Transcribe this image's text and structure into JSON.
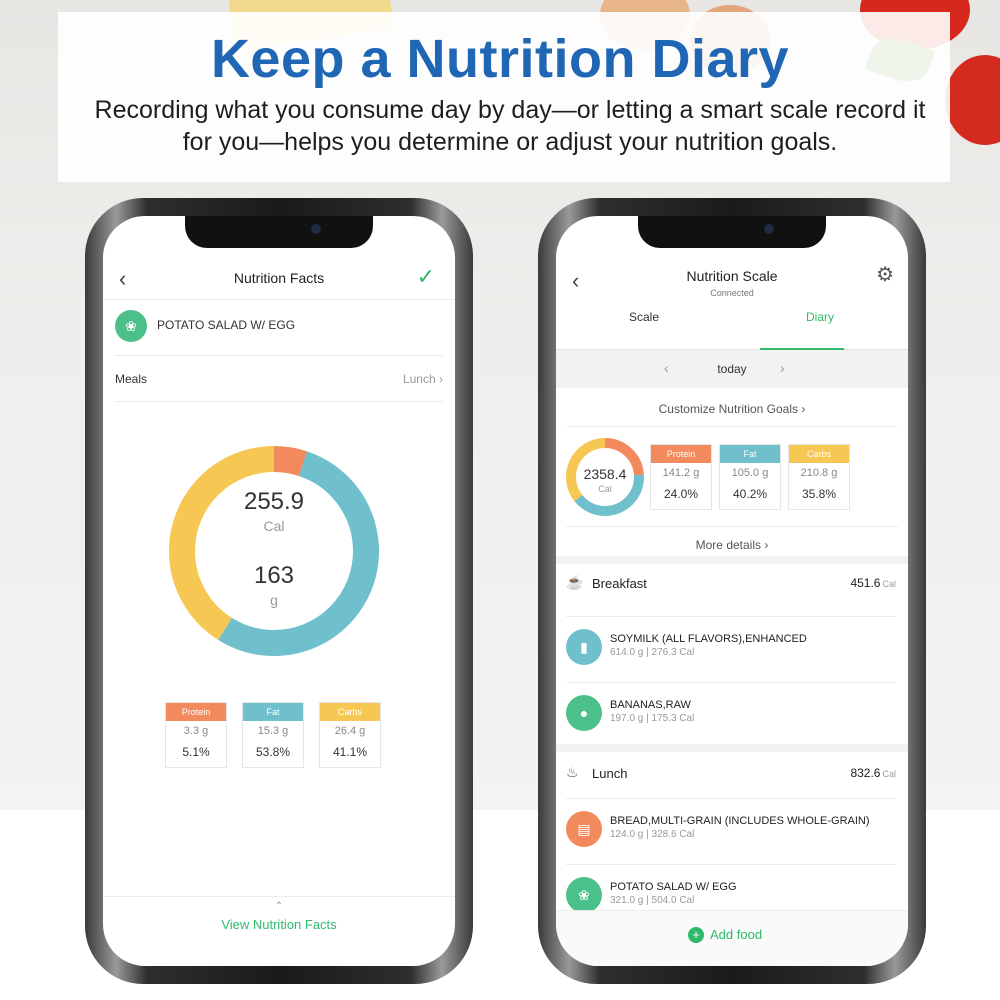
{
  "header": {
    "title": "Keep a Nutrition Diary",
    "subtitle": "Recording what you consume day by day—or letting a smart scale record it for you—helps you determine or adjust your nutrition goals."
  },
  "colors": {
    "protein": "#f28a5d",
    "fat": "#6fbfcc",
    "carbs": "#f7c753",
    "accent": "#2fb96a",
    "headline": "#1f66b4"
  },
  "left_screen": {
    "title": "Nutrition Facts",
    "food": "POTATO SALAD W/ EGG",
    "meals_label": "Meals",
    "meals_value": "Lunch",
    "calories": "255.9",
    "calories_unit": "Cal",
    "weight": "163",
    "weight_unit": "g",
    "macros": [
      {
        "label": "Protein",
        "grams": "3.3 g",
        "percent": "5.1%",
        "fraction": 0.051
      },
      {
        "label": "Fat",
        "grams": "15.3 g",
        "percent": "53.8%",
        "fraction": 0.538
      },
      {
        "label": "Carbs",
        "grams": "26.4 g",
        "percent": "41.1%",
        "fraction": 0.411
      }
    ],
    "bottom_link": "View Nutrition Facts"
  },
  "right_screen": {
    "title": "Nutrition Scale",
    "status": "Connected",
    "tabs": [
      {
        "label": "Scale"
      },
      {
        "label": "Diary",
        "active": true
      }
    ],
    "day": "today",
    "customize": "Customize Nutrition Goals",
    "total_calories": "2358.4",
    "calories_unit": "Cal",
    "macros": [
      {
        "label": "Protein",
        "grams": "141.2 g",
        "percent": "24.0%",
        "fraction": 0.24
      },
      {
        "label": "Fat",
        "grams": "105.0 g",
        "percent": "40.2%",
        "fraction": 0.402
      },
      {
        "label": "Carbs",
        "grams": "210.8 g",
        "percent": "35.8%",
        "fraction": 0.358
      }
    ],
    "more_details": "More details",
    "meals": [
      {
        "name": "Breakfast",
        "calories": "451.6",
        "unit": "Cal",
        "items": [
          {
            "name": "SOYMILK (ALL FLAVORS),ENHANCED",
            "detail": "614.0 g | 276.3 Cal",
            "icon": "milk-icon",
            "color": "#6fbfcc"
          },
          {
            "name": "BANANAS,RAW",
            "detail": "197.0 g | 175.3 Cal",
            "icon": "fruit-icon",
            "color": "#4cc08a"
          }
        ]
      },
      {
        "name": "Lunch",
        "calories": "832.6",
        "unit": "Cal",
        "items": [
          {
            "name": "BREAD,MULTI-GRAIN (INCLUDES WHOLE-GRAIN)",
            "detail": "124.0 g | 328.6 Cal",
            "icon": "bread-icon",
            "color": "#f28a5d"
          },
          {
            "name": "POTATO SALAD W/ EGG",
            "detail": "321.0 g | 504.0 Cal",
            "icon": "salad-icon",
            "color": "#4cc08a"
          }
        ]
      }
    ],
    "add_food": "Add food"
  }
}
